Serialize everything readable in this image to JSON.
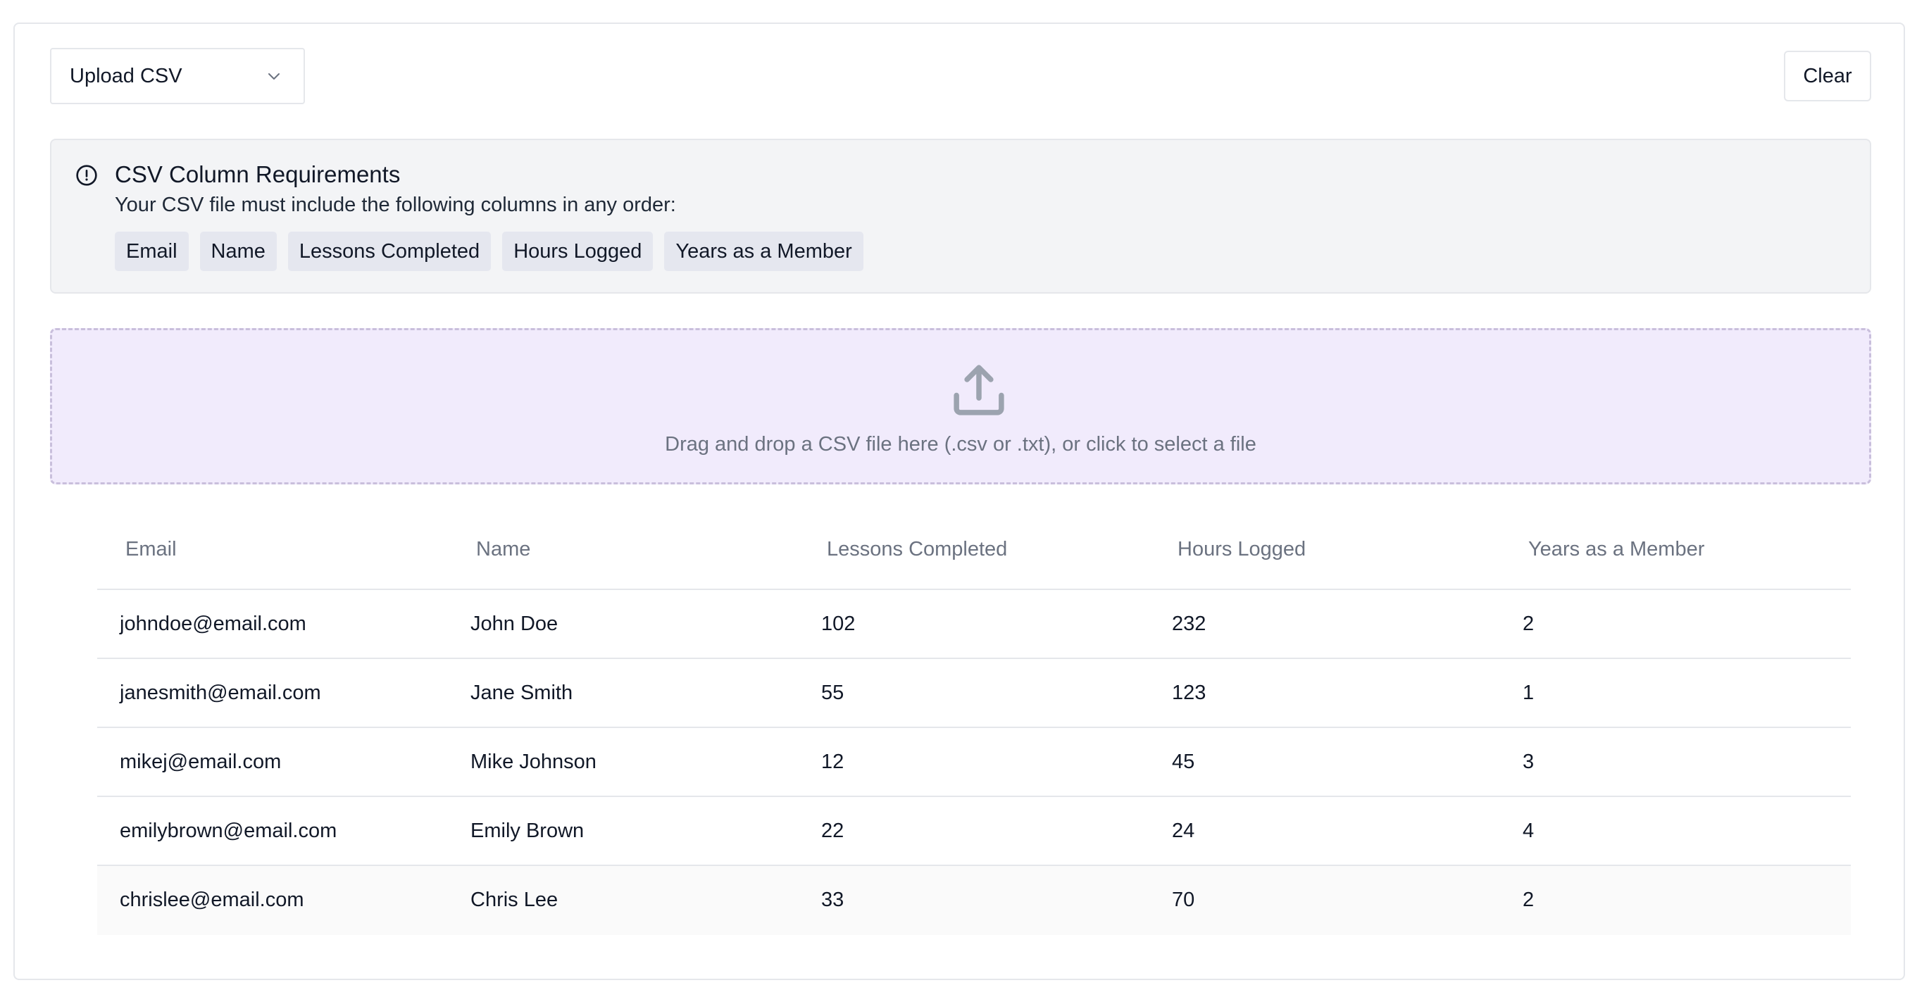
{
  "toolbar": {
    "select_value": "Upload CSV",
    "clear_label": "Clear"
  },
  "requirements": {
    "title": "CSV Column Requirements",
    "description": "Your CSV file must include the following columns in any order:",
    "columns": [
      "Email",
      "Name",
      "Lessons Completed",
      "Hours Logged",
      "Years as a Member"
    ]
  },
  "dropzone": {
    "text": "Drag and drop a CSV file here (.csv or .txt), or click to select a file"
  },
  "table": {
    "headers": [
      "Email",
      "Name",
      "Lessons Completed",
      "Hours Logged",
      "Years as a Member"
    ],
    "rows": [
      [
        "johndoe@email.com",
        "John Doe",
        "102",
        "232",
        "2"
      ],
      [
        "janesmith@email.com",
        "Jane Smith",
        "55",
        "123",
        "1"
      ],
      [
        "mikej@email.com",
        "Mike Johnson",
        "12",
        "45",
        "3"
      ],
      [
        "emilybrown@email.com",
        "Emily Brown",
        "22",
        "24",
        "4"
      ],
      [
        "chrislee@email.com",
        "Chris Lee",
        "33",
        "70",
        "2"
      ]
    ]
  },
  "icons": {
    "select": "chevron-down-icon",
    "alert": "info-circle-icon",
    "dropzone": "upload-icon"
  }
}
